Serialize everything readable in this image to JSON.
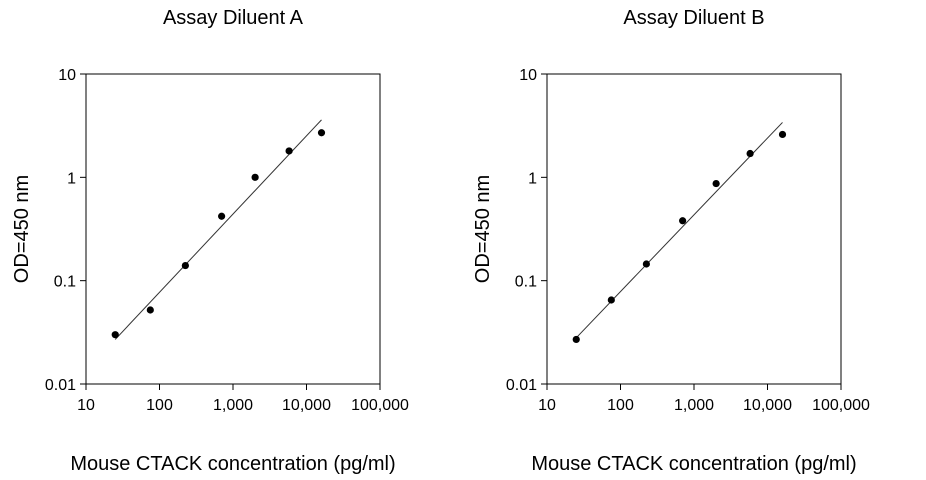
{
  "chart_data": [
    {
      "type": "scatter",
      "title": "Assay Diluent A",
      "xlabel": "Mouse CTACK concentration (pg/ml)",
      "ylabel": "OD=450 nm",
      "x_scale": "log",
      "y_scale": "log",
      "xlim": [
        10,
        100000
      ],
      "ylim": [
        0.01,
        10
      ],
      "x_ticks": [
        10,
        100,
        1000,
        10000,
        100000
      ],
      "x_tick_labels": [
        "10",
        "100",
        "1,000",
        "10,000",
        "100,000"
      ],
      "y_ticks": [
        0.01,
        0.1,
        1,
        10
      ],
      "y_tick_labels": [
        "0.01",
        "0.1",
        "1",
        "10"
      ],
      "grid": false,
      "series": [
        {
          "x": [
            25,
            75,
            225,
            700,
            2000,
            5800,
            16000
          ],
          "y": [
            0.03,
            0.052,
            0.14,
            0.42,
            1.0,
            1.8,
            2.7
          ],
          "color": "#000000"
        }
      ],
      "fit_line": {
        "x": [
          25,
          16000
        ],
        "y": [
          0.027,
          3.6
        ]
      }
    },
    {
      "type": "scatter",
      "title": "Assay Diluent B",
      "xlabel": "Mouse CTACK concentration (pg/ml)",
      "ylabel": "OD=450 nm",
      "x_scale": "log",
      "y_scale": "log",
      "xlim": [
        10,
        100000
      ],
      "ylim": [
        0.01,
        10
      ],
      "x_ticks": [
        10,
        100,
        1000,
        10000,
        100000
      ],
      "x_tick_labels": [
        "10",
        "100",
        "1,000",
        "10,000",
        "100,000"
      ],
      "y_ticks": [
        0.01,
        0.1,
        1,
        10
      ],
      "y_tick_labels": [
        "0.01",
        "0.1",
        "1",
        "10"
      ],
      "grid": false,
      "series": [
        {
          "x": [
            25,
            75,
            225,
            700,
            2000,
            5800,
            16000
          ],
          "y": [
            0.027,
            0.065,
            0.145,
            0.38,
            0.87,
            1.7,
            2.6
          ],
          "color": "#000000"
        }
      ],
      "fit_line": {
        "x": [
          25,
          16000
        ],
        "y": [
          0.028,
          3.4
        ]
      }
    }
  ]
}
